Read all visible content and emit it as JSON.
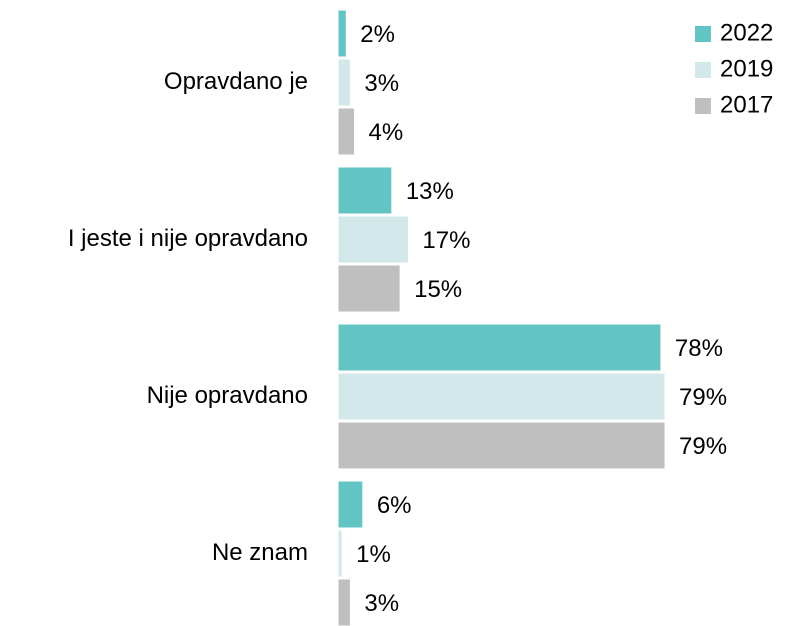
{
  "chart_data": {
    "type": "bar",
    "orientation": "horizontal",
    "categories": [
      "Opravdano je",
      "I jeste i nije opravdano",
      "Nije opravdano",
      "Ne znam"
    ],
    "series": [
      {
        "name": "2022",
        "color": "#62c4c3",
        "values": [
          2,
          13,
          78,
          6
        ],
        "value_labels": [
          "2%",
          "13%",
          "78%",
          "6%"
        ]
      },
      {
        "name": "2019",
        "color": "#d3e8ea",
        "values": [
          3,
          17,
          79,
          1
        ],
        "value_labels": [
          "3%",
          "17%",
          "79%",
          "1%"
        ]
      },
      {
        "name": "2017",
        "color": "#bfbfbf",
        "values": [
          4,
          15,
          79,
          3
        ],
        "value_labels": [
          "4%",
          "15%",
          "79%",
          "3%"
        ]
      }
    ],
    "xlim": [
      0,
      100
    ],
    "legend": "upper right"
  }
}
